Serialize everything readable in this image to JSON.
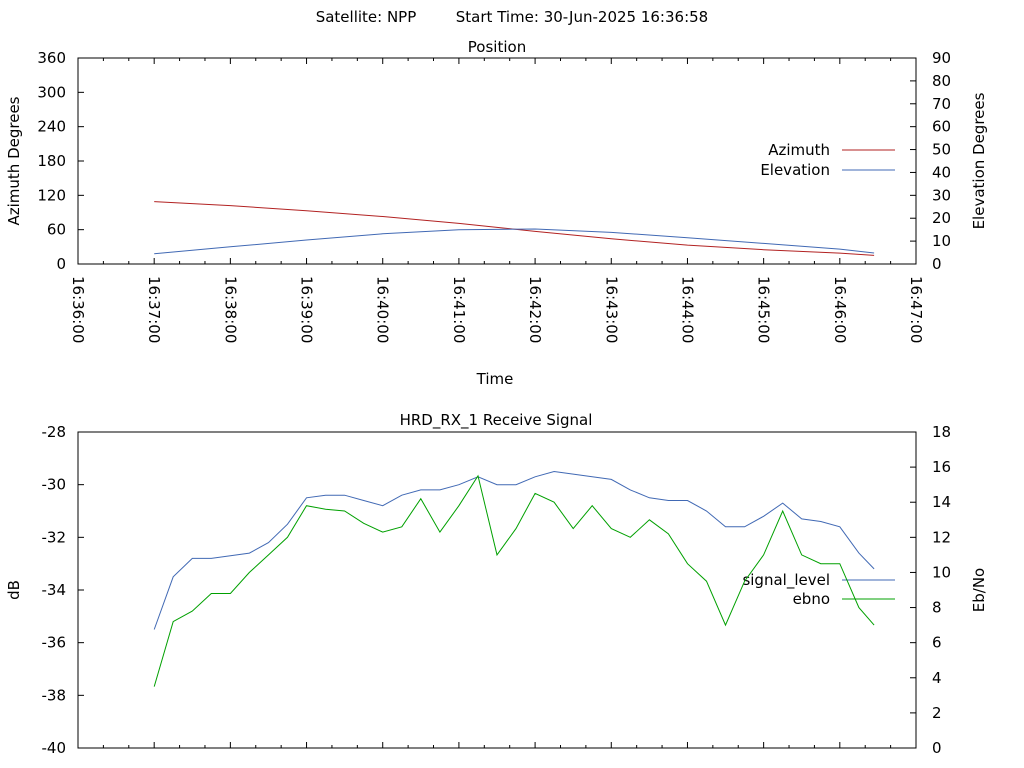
{
  "header": {
    "satellite": "Satellite: NPP",
    "start_time": "Start Time: 30-Jun-2025 16:36:58"
  },
  "chart_data": [
    {
      "type": "line",
      "title": "Position",
      "xlabel": "Time",
      "ylabel": "Azimuth Degrees",
      "y2label": "Elevation Degrees",
      "x_range": [
        "16:36:00",
        "16:47:00"
      ],
      "xticks": [
        "16:36:00",
        "16:37:00",
        "16:38:00",
        "16:39:00",
        "16:40:00",
        "16:41:00",
        "16:42:00",
        "16:43:00",
        "16:44:00",
        "16:45:00",
        "16:46:00",
        "16:47:00"
      ],
      "ylim": [
        0,
        360
      ],
      "yticks": [
        "0",
        "60",
        "120",
        "180",
        "240",
        "300",
        "360"
      ],
      "y2lim": [
        0,
        90
      ],
      "y2ticks": [
        "0",
        "10",
        "20",
        "30",
        "40",
        "50",
        "60",
        "70",
        "80",
        "90"
      ],
      "legend_position": "right",
      "series": [
        {
          "name": "Azimuth",
          "axis": "y1",
          "color": "#b22222",
          "points": [
            [
              "16:37:00",
              109
            ],
            [
              "16:38:00",
              102
            ],
            [
              "16:39:00",
              93
            ],
            [
              "16:40:00",
              83
            ],
            [
              "16:41:00",
              71
            ],
            [
              "16:41:30",
              64
            ],
            [
              "16:42:00",
              57
            ],
            [
              "16:43:00",
              44
            ],
            [
              "16:44:00",
              33
            ],
            [
              "16:45:00",
              25
            ],
            [
              "16:46:00",
              19
            ],
            [
              "16:46:27",
              15
            ]
          ]
        },
        {
          "name": "Elevation",
          "axis": "y2",
          "color": "#4169b4",
          "points": [
            [
              "16:37:00",
              4.5
            ],
            [
              "16:38:00",
              7.5
            ],
            [
              "16:39:00",
              10.5
            ],
            [
              "16:40:00",
              13.2
            ],
            [
              "16:41:00",
              15
            ],
            [
              "16:42:00",
              15.3
            ],
            [
              "16:43:00",
              13.8
            ],
            [
              "16:44:00",
              11.5
            ],
            [
              "16:45:00",
              9
            ],
            [
              "16:46:00",
              6.5
            ],
            [
              "16:46:27",
              4.8
            ]
          ]
        }
      ]
    },
    {
      "type": "line",
      "title": "HRD_RX_1 Receive Signal",
      "ylabel": "dB",
      "y2label": "Eb/No",
      "x_range": [
        "16:36:00",
        "16:47:00"
      ],
      "ylim": [
        -40,
        -28
      ],
      "yticks": [
        "-40",
        "-38",
        "-36",
        "-34",
        "-32",
        "-30",
        "-28"
      ],
      "y2lim": [
        0,
        18
      ],
      "y2ticks": [
        "0",
        "2",
        "4",
        "6",
        "8",
        "10",
        "12",
        "14",
        "16",
        "18"
      ],
      "legend_position": "right",
      "series": [
        {
          "name": "signal_level",
          "axis": "y1",
          "color": "#4169b4",
          "points": [
            [
              "16:37:00",
              -35.5
            ],
            [
              "16:37:15",
              -33.5
            ],
            [
              "16:37:30",
              -32.8
            ],
            [
              "16:37:45",
              -32.8
            ],
            [
              "16:38:00",
              -32.7
            ],
            [
              "16:38:15",
              -32.6
            ],
            [
              "16:38:30",
              -32.2
            ],
            [
              "16:38:45",
              -31.5
            ],
            [
              "16:39:00",
              -30.5
            ],
            [
              "16:39:15",
              -30.4
            ],
            [
              "16:39:30",
              -30.4
            ],
            [
              "16:39:45",
              -30.6
            ],
            [
              "16:40:00",
              -30.8
            ],
            [
              "16:40:15",
              -30.4
            ],
            [
              "16:40:30",
              -30.2
            ],
            [
              "16:40:45",
              -30.2
            ],
            [
              "16:41:00",
              -30.0
            ],
            [
              "16:41:15",
              -29.7
            ],
            [
              "16:41:30",
              -30.0
            ],
            [
              "16:41:45",
              -30.0
            ],
            [
              "16:42:00",
              -29.7
            ],
            [
              "16:42:15",
              -29.5
            ],
            [
              "16:42:30",
              -29.6
            ],
            [
              "16:42:45",
              -29.7
            ],
            [
              "16:43:00",
              -29.8
            ],
            [
              "16:43:15",
              -30.2
            ],
            [
              "16:43:30",
              -30.5
            ],
            [
              "16:43:45",
              -30.6
            ],
            [
              "16:44:00",
              -30.6
            ],
            [
              "16:44:15",
              -31.0
            ],
            [
              "16:44:30",
              -31.6
            ],
            [
              "16:44:45",
              -31.6
            ],
            [
              "16:45:00",
              -31.2
            ],
            [
              "16:45:15",
              -30.7
            ],
            [
              "16:45:30",
              -31.3
            ],
            [
              "16:45:45",
              -31.4
            ],
            [
              "16:46:00",
              -31.6
            ],
            [
              "16:46:15",
              -32.6
            ],
            [
              "16:46:27",
              -33.2
            ]
          ]
        },
        {
          "name": "ebno",
          "axis": "y2",
          "color": "#00a000",
          "points": [
            [
              "16:37:00",
              3.5
            ],
            [
              "16:37:15",
              7.2
            ],
            [
              "16:37:30",
              7.8
            ],
            [
              "16:37:45",
              8.8
            ],
            [
              "16:38:00",
              8.8
            ],
            [
              "16:38:15",
              10.0
            ],
            [
              "16:38:30",
              11.0
            ],
            [
              "16:38:45",
              12.0
            ],
            [
              "16:39:00",
              13.8
            ],
            [
              "16:39:15",
              13.6
            ],
            [
              "16:39:30",
              13.5
            ],
            [
              "16:39:45",
              12.8
            ],
            [
              "16:40:00",
              12.3
            ],
            [
              "16:40:15",
              12.6
            ],
            [
              "16:40:30",
              14.2
            ],
            [
              "16:40:45",
              12.3
            ],
            [
              "16:41:00",
              13.8
            ],
            [
              "16:41:15",
              15.5
            ],
            [
              "16:41:30",
              11.0
            ],
            [
              "16:41:45",
              12.5
            ],
            [
              "16:42:00",
              14.5
            ],
            [
              "16:42:15",
              14.0
            ],
            [
              "16:42:30",
              12.5
            ],
            [
              "16:42:45",
              13.8
            ],
            [
              "16:43:00",
              12.5
            ],
            [
              "16:43:15",
              12.0
            ],
            [
              "16:43:30",
              13.0
            ],
            [
              "16:43:45",
              12.2
            ],
            [
              "16:44:00",
              10.5
            ],
            [
              "16:44:15",
              9.5
            ],
            [
              "16:44:30",
              7.0
            ],
            [
              "16:44:45",
              9.5
            ],
            [
              "16:45:00",
              11.0
            ],
            [
              "16:45:15",
              13.5
            ],
            [
              "16:45:30",
              11.0
            ],
            [
              "16:45:45",
              10.5
            ],
            [
              "16:46:00",
              10.5
            ],
            [
              "16:46:15",
              8.0
            ],
            [
              "16:46:27",
              7.0
            ]
          ]
        }
      ]
    }
  ]
}
